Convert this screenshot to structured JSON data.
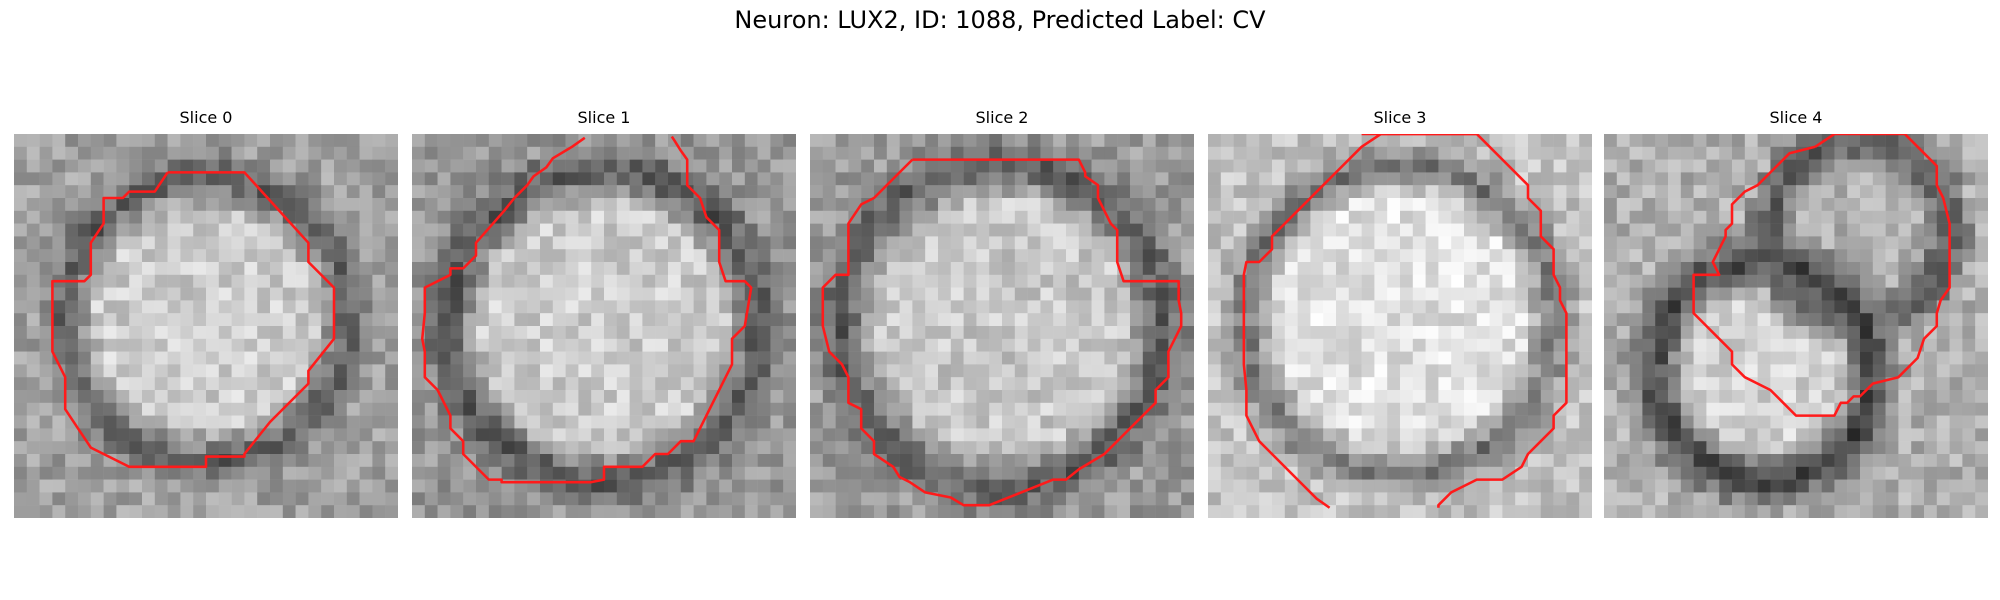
{
  "suptitle": "Neuron: LUX2, ID: 1088, Predicted Label: CV",
  "slices": [
    {
      "title": "Slice 0"
    },
    {
      "title": "Slice 1"
    },
    {
      "title": "Slice 2"
    },
    {
      "title": "Slice 3"
    },
    {
      "title": "Slice 4"
    }
  ],
  "contour_color": "#ff1a1a"
}
